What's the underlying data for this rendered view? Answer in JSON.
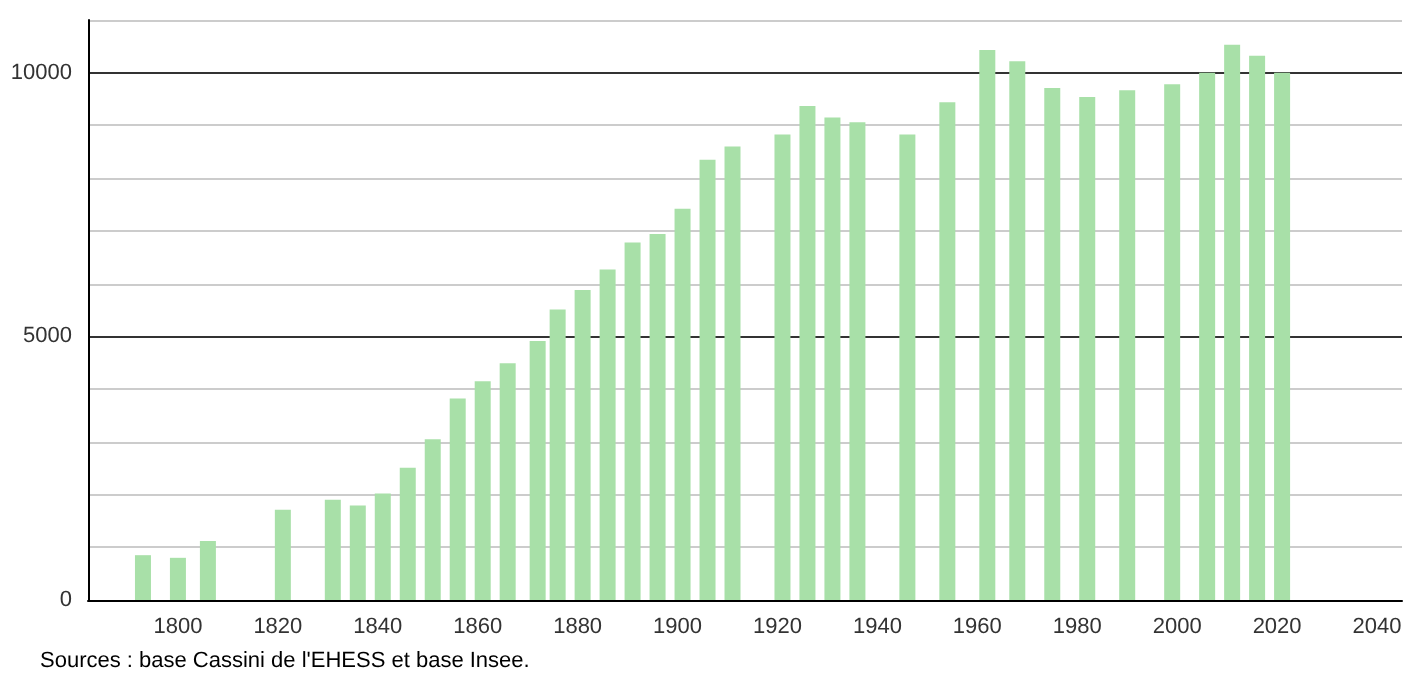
{
  "chart_data": {
    "type": "bar",
    "x": [
      1793,
      1800,
      1806,
      1821,
      1831,
      1836,
      1841,
      1846,
      1851,
      1856,
      1861,
      1866,
      1872,
      1876,
      1881,
      1886,
      1891,
      1896,
      1901,
      1906,
      1911,
      1921,
      1926,
      1931,
      1936,
      1946,
      1954,
      1962,
      1968,
      1975,
      1982,
      1990,
      1999,
      2006,
      2011,
      2016,
      2021
    ],
    "values": [
      850,
      800,
      1120,
      1710,
      1900,
      1790,
      2020,
      2510,
      3050,
      3820,
      4150,
      4490,
      4910,
      5510,
      5880,
      6270,
      6780,
      6940,
      7420,
      8350,
      8600,
      8830,
      9370,
      9150,
      9060,
      8830,
      9440,
      10430,
      10220,
      9710,
      9540,
      9670,
      9780,
      10000,
      10530,
      10320,
      10000
    ],
    "color": "#a8e0a8",
    "xlim": [
      1782,
      2045
    ],
    "xticks": [
      1800,
      1820,
      1840,
      1860,
      1880,
      1900,
      1920,
      1940,
      1960,
      1980,
      2000,
      2020,
      2040
    ],
    "ylim": [
      0,
      11000
    ],
    "yticks": [
      0,
      {
        "value": 1000,
        "label": null
      },
      {
        "value": 2000,
        "label": null
      },
      {
        "value": 3000,
        "label": null
      },
      {
        "value": 4000,
        "label": null
      },
      5000,
      {
        "value": 6000,
        "label": null
      },
      {
        "value": 7000,
        "label": null
      },
      {
        "value": 8000,
        "label": null
      },
      {
        "value": 9000,
        "label": null
      },
      10000,
      {
        "value": 11000,
        "label": null
      }
    ],
    "grid": "y",
    "annotations": [
      "Sources : base Cassini de l'EHESS et base Insee."
    ]
  }
}
